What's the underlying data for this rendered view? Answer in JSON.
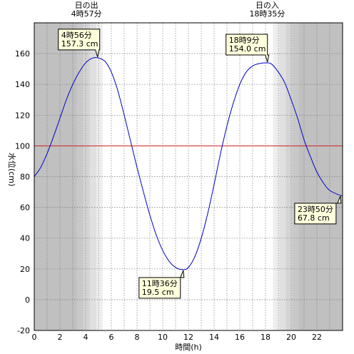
{
  "chart_data": {
    "type": "line",
    "xlabel": "時間(h)",
    "ylabel": "水位(cm)",
    "xlim": [
      0,
      24
    ],
    "ylim": [
      -20,
      180
    ],
    "xticks": [
      0,
      2,
      4,
      6,
      8,
      10,
      12,
      14,
      16,
      18,
      20,
      22
    ],
    "yticks": [
      -20,
      0,
      20,
      40,
      60,
      80,
      100,
      120,
      140,
      160
    ],
    "reference_line": {
      "value": 100,
      "color": "#d42020"
    },
    "line_color": "#0000cc",
    "series": [
      {
        "x": [
          0,
          0.5,
          1,
          1.5,
          2,
          2.5,
          3,
          3.5,
          4,
          4.5,
          4.93,
          5.5,
          6,
          6.5,
          7,
          7.5,
          8,
          8.5,
          9,
          9.5,
          10,
          10.5,
          11,
          11.6,
          12,
          12.5,
          13,
          13.5,
          14,
          14.5,
          15,
          15.5,
          16,
          16.5,
          17,
          17.5,
          18.15,
          18.5,
          19,
          19.5,
          20,
          20.5,
          21,
          21.5,
          22,
          22.5,
          23,
          23.83,
          24
        ],
        "y": [
          80,
          86,
          95,
          106,
          118,
          130,
          140,
          148,
          154,
          157,
          157.3,
          155,
          148,
          136,
          120,
          103,
          86,
          70,
          55,
          42,
          32,
          25,
          21,
          19.5,
          21,
          28,
          40,
          56,
          75,
          95,
          113,
          128,
          140,
          148,
          152,
          153.5,
          154.0,
          153,
          148,
          141,
          130,
          118,
          104,
          93,
          83,
          76,
          71,
          67.8,
          67.8
        ]
      }
    ],
    "annotations": [
      {
        "time": "4時56分",
        "level": "157.3 cm",
        "x": 4.93,
        "y": 157.3,
        "side": "above"
      },
      {
        "time": "11時36分",
        "level": "19.5 cm",
        "x": 11.6,
        "y": 19.5,
        "side": "below"
      },
      {
        "time": "18時9分",
        "level": "154.0 cm",
        "x": 18.15,
        "y": 154.0,
        "side": "above"
      },
      {
        "time": "23時50分",
        "level": "67.8 cm",
        "x": 23.83,
        "y": 67.8,
        "side": "below"
      }
    ],
    "sunrise": {
      "label": "日の出",
      "time": "4時57分",
      "x": 4.95
    },
    "sunset": {
      "label": "日の入",
      "time": "18時35分",
      "x": 18.58
    },
    "background": {
      "night": "#c0c0c0",
      "twilight": [
        "#c8c8c8",
        "#d4d4d4",
        "#e0e0e0",
        "#eeeeee"
      ],
      "day": "#ffffff",
      "morning_twilight_x": [
        3.33,
        3.83,
        4.33,
        4.83,
        5.33
      ],
      "evening_twilight_x": [
        18.58,
        19.08,
        19.58,
        20.08,
        20.58
      ]
    },
    "grid": true
  }
}
